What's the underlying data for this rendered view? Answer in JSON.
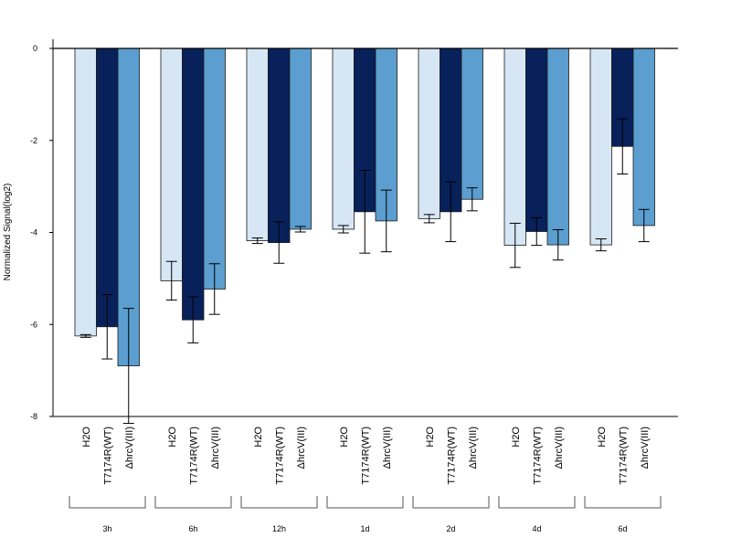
{
  "chart_data": {
    "type": "bar",
    "ylabel": "Normalized Signal(log2)",
    "ylim": [
      -8,
      0
    ],
    "yticks": [
      0,
      -2,
      -4,
      -6,
      -8
    ],
    "groups": [
      "3h",
      "6h",
      "12h",
      "1d",
      "2d",
      "4d",
      "6d"
    ],
    "bar_labels": [
      "H2O",
      "T7174R(WT)",
      "ΔhrcV(III)"
    ],
    "colors": [
      "#d6e6f5",
      "#08215a",
      "#5b9ecf"
    ],
    "series": [
      {
        "name": "H2O",
        "values": [
          -6.25,
          -5.05,
          -4.18,
          -3.93,
          -3.7,
          -4.28,
          -4.27
        ],
        "error": [
          0.03,
          0.42,
          0.06,
          0.08,
          0.09,
          0.48,
          0.13
        ]
      },
      {
        "name": "T7174R(WT)",
        "values": [
          -6.05,
          -5.9,
          -4.22,
          -3.55,
          -3.55,
          -3.98,
          -2.13
        ],
        "error": [
          0.7,
          0.5,
          0.45,
          0.9,
          0.65,
          0.3,
          0.6
        ]
      },
      {
        "name": "ΔhrcV(III)",
        "values": [
          -6.9,
          -5.23,
          -3.93,
          -3.75,
          -3.28,
          -4.27,
          -3.85
        ],
        "error": [
          1.25,
          0.55,
          0.06,
          0.67,
          0.25,
          0.33,
          0.35
        ]
      }
    ]
  }
}
